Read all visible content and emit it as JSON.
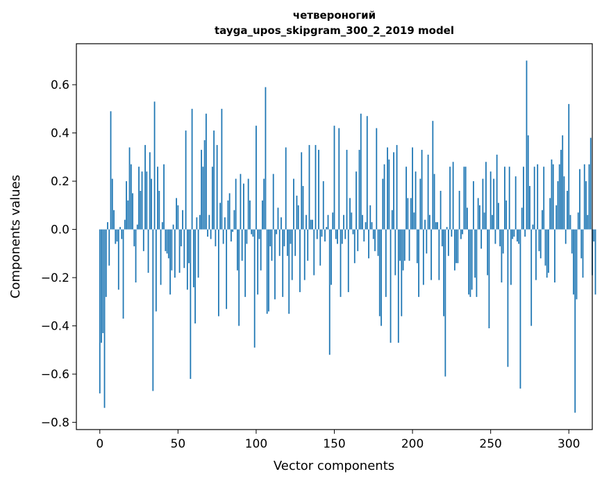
{
  "chart_data": {
    "type": "bar",
    "title": "четвероногий",
    "subtitle": "tayga_upos_skipgram_300_2_2019 model",
    "xlabel": "Vector components",
    "ylabel": "Components values",
    "xlim": [
      -15,
      315
    ],
    "ylim": [
      -0.83,
      0.77
    ],
    "xticks": [
      0,
      50,
      100,
      150,
      200,
      250,
      300
    ],
    "yticks": [
      -0.8,
      -0.6,
      -0.4,
      -0.2,
      0.0,
      0.2,
      0.4,
      0.6
    ],
    "ytick_labels": [
      "−0.8",
      "−0.6",
      "−0.4",
      "−0.2",
      "0.0",
      "0.2",
      "0.4",
      "0.6"
    ],
    "xtick_labels": [
      "0",
      "50",
      "100",
      "150",
      "200",
      "250",
      "300"
    ],
    "bar_color": "#1f77b4",
    "values": [
      -0.68,
      -0.47,
      -0.43,
      -0.74,
      -0.28,
      0.03,
      -0.15,
      0.49,
      0.21,
      0.08,
      -0.06,
      -0.05,
      -0.25,
      0.01,
      -0.04,
      -0.37,
      0.04,
      0.2,
      0.12,
      0.34,
      0.27,
      0.15,
      -0.07,
      -0.22,
      0.02,
      0.26,
      0.16,
      0.24,
      -0.09,
      0.35,
      0.24,
      -0.18,
      0.32,
      0.21,
      -0.67,
      0.53,
      -0.34,
      0.26,
      0.16,
      -0.23,
      0.03,
      0.27,
      -0.09,
      -0.1,
      -0.12,
      -0.27,
      -0.17,
      0.02,
      -0.2,
      0.13,
      0.1,
      -0.18,
      -0.07,
      0.08,
      -0.16,
      0.41,
      -0.25,
      -0.14,
      -0.62,
      0.5,
      -0.24,
      -0.39,
      0.05,
      -0.2,
      0.06,
      0.33,
      0.26,
      0.37,
      0.48,
      -0.03,
      0.06,
      -0.04,
      0.26,
      0.41,
      -0.07,
      0.35,
      -0.36,
      0.11,
      0.5,
      -0.06,
      0.05,
      -0.33,
      0.12,
      0.15,
      -0.05,
      -0.01,
      0.08,
      0.21,
      -0.17,
      -0.4,
      0.23,
      -0.13,
      0.19,
      -0.28,
      -0.06,
      0.21,
      0.12,
      -0.02,
      -0.03,
      -0.49,
      0.43,
      -0.27,
      -0.04,
      -0.17,
      0.12,
      0.21,
      0.59,
      -0.35,
      -0.34,
      -0.07,
      -0.13,
      0.23,
      -0.29,
      -0.02,
      0.09,
      -0.11,
      0.05,
      -0.28,
      -0.07,
      0.34,
      -0.11,
      -0.35,
      -0.06,
      -0.21,
      0.21,
      -0.11,
      0.14,
      0.1,
      -0.26,
      0.32,
      0.18,
      -0.21,
      0.06,
      -0.13,
      0.35,
      0.04,
      0.04,
      -0.19,
      0.35,
      -0.04,
      0.33,
      -0.15,
      -0.03,
      0.2,
      -0.05,
      0.01,
      0.06,
      -0.52,
      -0.23,
      0.07,
      0.43,
      -0.04,
      -0.06,
      0.42,
      -0.28,
      -0.06,
      0.06,
      -0.04,
      0.33,
      -0.26,
      0.13,
      0.07,
      -0.02,
      -0.14,
      0.24,
      -0.09,
      0.33,
      0.48,
      0.06,
      -0.05,
      0.03,
      0.47,
      -0.12,
      0.1,
      0.03,
      -0.04,
      -0.09,
      0.42,
      -0.11,
      -0.36,
      -0.4,
      0.21,
      0.27,
      -0.28,
      0.34,
      0.29,
      -0.47,
      0.08,
      0.32,
      -0.19,
      0.35,
      -0.47,
      -0.13,
      -0.36,
      -0.17,
      -0.13,
      0.26,
      0.13,
      -0.13,
      0.13,
      0.34,
      0.07,
      0.24,
      -0.14,
      -0.28,
      0.21,
      0.33,
      -0.23,
      0.04,
      -0.1,
      0.31,
      0.06,
      -0.21,
      0.45,
      0.23,
      0.03,
      0.03,
      -0.21,
      0.16,
      -0.07,
      -0.36,
      -0.61,
      0.01,
      -0.11,
      0.26,
      -0.03,
      0.28,
      -0.17,
      -0.14,
      -0.14,
      0.16,
      -0.04,
      -0.02,
      0.26,
      0.26,
      0.09,
      -0.27,
      -0.28,
      -0.25,
      0.2,
      -0.2,
      -0.28,
      0.13,
      0.1,
      -0.08,
      0.21,
      0.07,
      0.28,
      -0.19,
      -0.41,
      0.24,
      0.06,
      0.21,
      -0.06,
      0.31,
      0.11,
      -0.07,
      -0.22,
      -0.1,
      0.26,
      0.12,
      -0.57,
      0.26,
      -0.23,
      -0.04,
      -0.03,
      0.22,
      -0.05,
      -0.06,
      -0.66,
      0.09,
      0.26,
      -0.03,
      0.7,
      0.39,
      0.18,
      -0.4,
      0.02,
      0.26,
      -0.21,
      0.27,
      -0.09,
      -0.12,
      0.08,
      0.26,
      -0.15,
      -0.2,
      -0.18,
      0.13,
      0.29,
      0.27,
      -0.22,
      0.1,
      0.2,
      0.27,
      0.33,
      0.39,
      0.22,
      -0.06,
      0.16,
      0.52,
      0.06,
      -0.1,
      -0.27,
      -0.76,
      -0.29,
      0.07,
      0.25,
      -0.12,
      -0.2,
      0.27,
      0.2,
      0.06,
      0.27,
      0.38,
      -0.19,
      -0.05,
      -0.27
    ]
  }
}
